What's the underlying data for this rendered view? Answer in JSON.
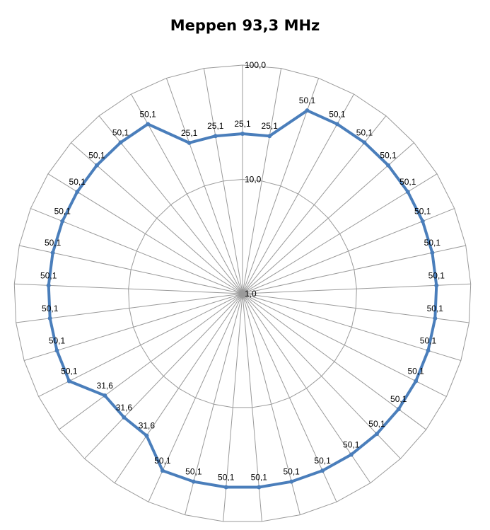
{
  "chart_data": {
    "type": "radar",
    "title": "Meppen 93,3 MHz",
    "scale": "log",
    "rlim": [
      1,
      100
    ],
    "ticks": [
      "1,0",
      "10,0",
      "100,0"
    ],
    "tick_values": [
      1,
      10,
      100
    ],
    "grid": true,
    "series_color": "#4a7ebb",
    "series": [
      {
        "values": [
          25.1,
          25.1,
          50.1,
          50.1,
          50.1,
          50.1,
          50.1,
          50.1,
          50.1,
          50.1,
          50.1,
          50.1,
          50.1,
          50.1,
          50.1,
          50.1,
          50.1,
          50.1,
          50.1,
          50.1,
          50.1,
          50.1,
          31.6,
          31.6,
          31.6,
          50.1,
          50.1,
          50.1,
          50.1,
          50.1,
          50.1,
          50.1,
          50.1,
          50.1,
          50.1,
          25.1,
          25.1
        ],
        "labels": [
          "25,1",
          "25,1",
          "50,1",
          "50,1",
          "50,1",
          "50,1",
          "50,1",
          "50,1",
          "50,1",
          "50,1",
          "50,1",
          "50,1",
          "50,1",
          "50,1",
          "50,1",
          "50,1",
          "50,1",
          "50,1",
          "50,1",
          "50,1",
          "50,1",
          "50,1",
          "31,6",
          "31,6",
          "31,6",
          "50,1",
          "50,1",
          "50,1",
          "50,1",
          "50,1",
          "50,1",
          "50,1",
          "50,1",
          "50,1",
          "50,1",
          "25,1",
          "25,1"
        ]
      }
    ]
  }
}
